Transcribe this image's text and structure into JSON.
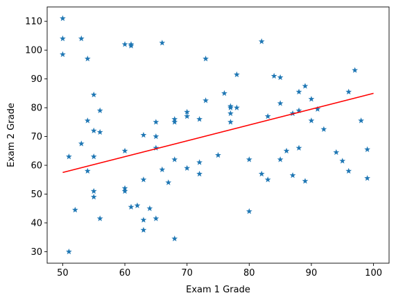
{
  "chart_data": {
    "type": "scatter",
    "title": "",
    "xlabel": "Exam 1 Grade",
    "ylabel": "Exam 2 Grade",
    "xlim": [
      47.5,
      102.5
    ],
    "ylim": [
      26,
      115
    ],
    "x_ticks": [
      50,
      60,
      70,
      80,
      90,
      100
    ],
    "y_ticks": [
      30,
      40,
      50,
      60,
      70,
      80,
      90,
      100,
      110
    ],
    "grid": false,
    "marker": "star",
    "colors": {
      "points": "#1f77b4",
      "fit_line": "#ff0000"
    },
    "points": {
      "x": [
        50,
        50,
        50,
        51,
        51,
        52,
        53,
        53,
        54,
        54,
        54,
        55,
        55,
        55,
        55,
        55,
        56,
        56,
        56,
        60,
        60,
        60,
        60,
        61,
        61,
        61,
        62,
        63,
        63,
        63,
        63,
        64,
        65,
        65,
        65,
        65,
        66,
        66,
        67,
        68,
        68,
        68,
        68,
        70,
        70,
        70,
        72,
        72,
        72,
        73,
        73,
        75,
        76,
        77,
        77,
        77,
        77,
        78,
        78,
        80,
        80,
        82,
        82,
        83,
        83,
        84,
        85,
        85,
        85,
        86,
        87,
        87,
        88,
        88,
        88,
        89,
        89,
        90,
        90,
        91,
        92,
        94,
        95,
        96,
        96,
        97,
        98,
        99,
        99
      ],
      "y": [
        111,
        104,
        98.5,
        63,
        30,
        44.5,
        104,
        67.5,
        97,
        75.5,
        58,
        84.5,
        72,
        63,
        51,
        49,
        79,
        71.5,
        41.5,
        102,
        65,
        52,
        51,
        102,
        101.5,
        45.5,
        46,
        70.5,
        55,
        41,
        37.5,
        45,
        75,
        70,
        66,
        41.5,
        102.5,
        58.5,
        54,
        76,
        75,
        62,
        34.5,
        78.5,
        77,
        59,
        76,
        61,
        57,
        97,
        82.5,
        63.5,
        85,
        80.5,
        80,
        78,
        75,
        91.5,
        80,
        62,
        44,
        103,
        57,
        77,
        55,
        91,
        90.5,
        81.5,
        62,
        65,
        78,
        56.5,
        85.5,
        79,
        66,
        87.5,
        54.5,
        83,
        75.5,
        79.5,
        72.5,
        64.5,
        61.5,
        85.5,
        58,
        93,
        75.5,
        65.5,
        55.5
      ]
    },
    "fit_line": {
      "x": [
        50,
        100
      ],
      "y": [
        57.5,
        85
      ]
    }
  }
}
